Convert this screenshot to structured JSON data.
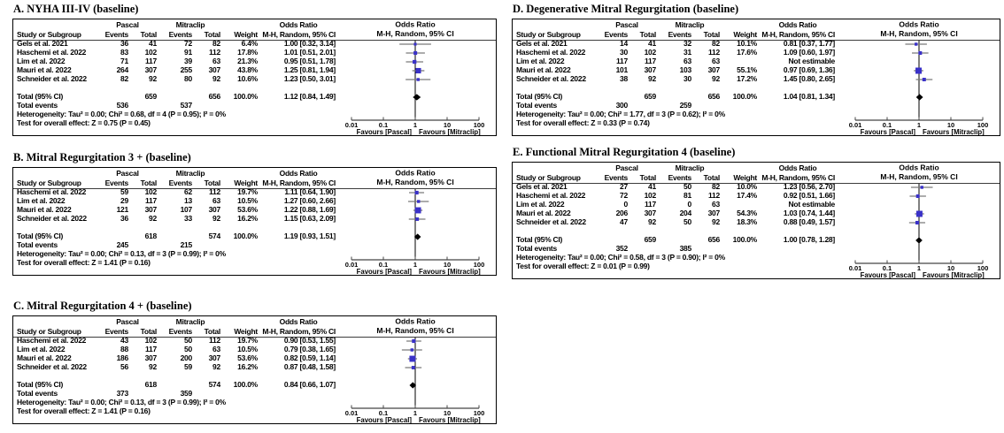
{
  "colors": {
    "marker": "#3a31c8",
    "ci_line": "#7a7a7a",
    "diamond": "#000000",
    "axis": "#444444",
    "text": "#000000",
    "border": "#000000"
  },
  "columns": {
    "study": "Study or Subgroup",
    "group1": "Pascal",
    "group2": "Mitraclip",
    "events": "Events",
    "total": "Total",
    "weight": "Weight",
    "or_title": "Odds Ratio",
    "or_sub": "M-H, Random, 95% CI"
  },
  "axis": {
    "ticks": [
      "0.01",
      "0.1",
      "1",
      "10",
      "100"
    ],
    "tick_values": [
      0.01,
      0.1,
      1,
      10,
      100
    ],
    "favours_left": "Favours [Pascal]",
    "favours_right": "Favours [Mitraclip]"
  },
  "chart_data": {
    "type": "forest",
    "scale": "log10",
    "xlim": [
      0.01,
      100
    ],
    "panels": [
      {
        "label": "A",
        "title": "A. NYHA III-IV (baseline)",
        "rows": [
          {
            "study": "Gels et al. 2021",
            "e1": "36",
            "t1": "41",
            "e2": "72",
            "t2": "82",
            "weight": "6.4%",
            "w": 6.4,
            "or_ci": "1.00 [0.32, 3.14]",
            "or": 1.0,
            "lo": 0.32,
            "hi": 3.14
          },
          {
            "study": "Haschemi et al. 2022",
            "e1": "83",
            "t1": "102",
            "e2": "91",
            "t2": "112",
            "weight": "17.8%",
            "w": 17.8,
            "or_ci": "1.01 [0.51, 2.01]",
            "or": 1.01,
            "lo": 0.51,
            "hi": 2.01
          },
          {
            "study": "Lim et al. 2022",
            "e1": "71",
            "t1": "117",
            "e2": "39",
            "t2": "63",
            "weight": "21.3%",
            "w": 21.3,
            "or_ci": "0.95 [0.51, 1.78]",
            "or": 0.95,
            "lo": 0.51,
            "hi": 1.78
          },
          {
            "study": "Mauri et al. 2022",
            "e1": "264",
            "t1": "307",
            "e2": "255",
            "t2": "307",
            "weight": "43.8%",
            "w": 43.8,
            "or_ci": "1.25 [0.81, 1.94]",
            "or": 1.25,
            "lo": 0.81,
            "hi": 1.94
          },
          {
            "study": "Schneider et al. 2022",
            "e1": "82",
            "t1": "92",
            "e2": "80",
            "t2": "92",
            "weight": "10.6%",
            "w": 10.6,
            "or_ci": "1.23 [0.50, 3.01]",
            "or": 1.23,
            "lo": 0.5,
            "hi": 3.01
          }
        ],
        "total": {
          "label": "Total (95% CI)",
          "t1": "659",
          "t2": "656",
          "weight": "100.0%",
          "or_ci": "1.12 [0.84, 1.49]",
          "or": 1.12,
          "lo": 0.84,
          "hi": 1.49
        },
        "total_events": {
          "label": "Total events",
          "e1": "536",
          "e2": "537"
        },
        "heterogeneity": "Heterogeneity: Tau² = 0.00; Chi² = 0.68, df = 4 (P = 0.95); I² = 0%",
        "overall_effect": "Test for overall effect: Z = 0.75 (P = 0.45)"
      },
      {
        "label": "B",
        "title": "B. Mitral Regurgitation 3 + (baseline)",
        "rows": [
          {
            "study": "Haschemi et al. 2022",
            "e1": "59",
            "t1": "102",
            "e2": "62",
            "t2": "112",
            "weight": "19.7%",
            "w": 19.7,
            "or_ci": "1.11 [0.64, 1.90]",
            "or": 1.11,
            "lo": 0.64,
            "hi": 1.9
          },
          {
            "study": "Lim et al. 2022",
            "e1": "29",
            "t1": "117",
            "e2": "13",
            "t2": "63",
            "weight": "10.5%",
            "w": 10.5,
            "or_ci": "1.27 [0.60, 2.66]",
            "or": 1.27,
            "lo": 0.6,
            "hi": 2.66
          },
          {
            "study": "Mauri et al. 2022",
            "e1": "121",
            "t1": "307",
            "e2": "107",
            "t2": "307",
            "weight": "53.6%",
            "w": 53.6,
            "or_ci": "1.22 [0.88, 1.69]",
            "or": 1.22,
            "lo": 0.88,
            "hi": 1.69
          },
          {
            "study": "Schneider et al. 2022",
            "e1": "36",
            "t1": "92",
            "e2": "33",
            "t2": "92",
            "weight": "16.2%",
            "w": 16.2,
            "or_ci": "1.15 [0.63, 2.09]",
            "or": 1.15,
            "lo": 0.63,
            "hi": 2.09
          }
        ],
        "total": {
          "label": "Total (95% CI)",
          "t1": "618",
          "t2": "574",
          "weight": "100.0%",
          "or_ci": "1.19 [0.93, 1.51]",
          "or": 1.19,
          "lo": 0.93,
          "hi": 1.51
        },
        "total_events": {
          "label": "Total events",
          "e1": "245",
          "e2": "215"
        },
        "heterogeneity": "Heterogeneity: Tau² = 0.00; Chi² = 0.13, df = 3 (P = 0.99); I² = 0%",
        "overall_effect": "Test for overall effect: Z = 1.41 (P = 0.16)"
      },
      {
        "label": "C",
        "title": "C. Mitral Regurgitation 4 + (baseline)",
        "rows": [
          {
            "study": "Haschemi et al. 2022",
            "e1": "43",
            "t1": "102",
            "e2": "50",
            "t2": "112",
            "weight": "19.7%",
            "w": 19.7,
            "or_ci": "0.90 [0.53, 1.55]",
            "or": 0.9,
            "lo": 0.53,
            "hi": 1.55
          },
          {
            "study": "Lim et al. 2022",
            "e1": "88",
            "t1": "117",
            "e2": "50",
            "t2": "63",
            "weight": "10.5%",
            "w": 10.5,
            "or_ci": "0.79 [0.38, 1.65]",
            "or": 0.79,
            "lo": 0.38,
            "hi": 1.65
          },
          {
            "study": "Mauri et al. 2022",
            "e1": "186",
            "t1": "307",
            "e2": "200",
            "t2": "307",
            "weight": "53.6%",
            "w": 53.6,
            "or_ci": "0.82 [0.59, 1.14]",
            "or": 0.82,
            "lo": 0.59,
            "hi": 1.14
          },
          {
            "study": "Schneider et al. 2022",
            "e1": "56",
            "t1": "92",
            "e2": "59",
            "t2": "92",
            "weight": "16.2%",
            "w": 16.2,
            "or_ci": "0.87 [0.48, 1.58]",
            "or": 0.87,
            "lo": 0.48,
            "hi": 1.58
          }
        ],
        "total": {
          "label": "Total (95% CI)",
          "t1": "618",
          "t2": "574",
          "weight": "100.0%",
          "or_ci": "0.84 [0.66, 1.07]",
          "or": 0.84,
          "lo": 0.66,
          "hi": 1.07
        },
        "total_events": {
          "label": "Total events",
          "e1": "373",
          "e2": "359"
        },
        "heterogeneity": "Heterogeneity: Tau² = 0.00; Chi² = 0.13, df = 3 (P = 0.99); I² = 0%",
        "overall_effect": "Test for overall effect: Z = 1.41 (P = 0.16)"
      },
      {
        "label": "D",
        "title": "D. Degenerative Mitral Regurgitation (baseline)",
        "rows": [
          {
            "study": "Gels et al. 2021",
            "e1": "14",
            "t1": "41",
            "e2": "32",
            "t2": "82",
            "weight": "10.1%",
            "w": 10.1,
            "or_ci": "0.81 [0.37, 1.77]",
            "or": 0.81,
            "lo": 0.37,
            "hi": 1.77
          },
          {
            "study": "Haschemi et al. 2022",
            "e1": "30",
            "t1": "102",
            "e2": "31",
            "t2": "112",
            "weight": "17.6%",
            "w": 17.6,
            "or_ci": "1.09 [0.60, 1.97]",
            "or": 1.09,
            "lo": 0.6,
            "hi": 1.97
          },
          {
            "study": "Lim et al. 2022",
            "e1": "117",
            "t1": "117",
            "e2": "63",
            "t2": "63",
            "weight": "",
            "w": null,
            "or_ci": "Not estimable",
            "or": null,
            "lo": null,
            "hi": null
          },
          {
            "study": "Mauri et al. 2022",
            "e1": "101",
            "t1": "307",
            "e2": "103",
            "t2": "307",
            "weight": "55.1%",
            "w": 55.1,
            "or_ci": "0.97 [0.69, 1.36]",
            "or": 0.97,
            "lo": 0.69,
            "hi": 1.36
          },
          {
            "study": "Schneider et al. 2022",
            "e1": "38",
            "t1": "92",
            "e2": "30",
            "t2": "92",
            "weight": "17.2%",
            "w": 17.2,
            "or_ci": "1.45 [0.80, 2.65]",
            "or": 1.45,
            "lo": 0.8,
            "hi": 2.65
          }
        ],
        "total": {
          "label": "Total (95% CI)",
          "t1": "659",
          "t2": "656",
          "weight": "100.0%",
          "or_ci": "1.04 [0.81, 1.34]",
          "or": 1.04,
          "lo": 0.81,
          "hi": 1.34
        },
        "total_events": {
          "label": "Total events",
          "e1": "300",
          "e2": "259"
        },
        "heterogeneity": "Heterogeneity: Tau² = 0.00; Chi² = 1.77, df = 3 (P = 0.62); I² = 0%",
        "overall_effect": "Test for overall effect: Z = 0.33 (P = 0.74)"
      },
      {
        "label": "E",
        "title": "E. Functional Mitral Regurgitation 4 (baseline)",
        "rows": [
          {
            "study": "Gels et al. 2021",
            "e1": "27",
            "t1": "41",
            "e2": "50",
            "t2": "82",
            "weight": "10.0%",
            "w": 10.0,
            "or_ci": "1.23 [0.56, 2.70]",
            "or": 1.23,
            "lo": 0.56,
            "hi": 2.7
          },
          {
            "study": "Haschemi et al. 2022",
            "e1": "72",
            "t1": "102",
            "e2": "81",
            "t2": "112",
            "weight": "17.4%",
            "w": 17.4,
            "or_ci": "0.92 [0.51, 1.66]",
            "or": 0.92,
            "lo": 0.51,
            "hi": 1.66
          },
          {
            "study": "Lim et al. 2022",
            "e1": "0",
            "t1": "117",
            "e2": "0",
            "t2": "63",
            "weight": "",
            "w": null,
            "or_ci": "Not estimable",
            "or": null,
            "lo": null,
            "hi": null
          },
          {
            "study": "Mauri et al. 2022",
            "e1": "206",
            "t1": "307",
            "e2": "204",
            "t2": "307",
            "weight": "54.3%",
            "w": 54.3,
            "or_ci": "1.03 [0.74, 1.44]",
            "or": 1.03,
            "lo": 0.74,
            "hi": 1.44
          },
          {
            "study": "Schneider et al. 2022",
            "e1": "47",
            "t1": "92",
            "e2": "50",
            "t2": "92",
            "weight": "18.3%",
            "w": 18.3,
            "or_ci": "0.88 [0.49, 1.57]",
            "or": 0.88,
            "lo": 0.49,
            "hi": 1.57
          }
        ],
        "total": {
          "label": "Total (95% CI)",
          "t1": "659",
          "t2": "656",
          "weight": "100.0%",
          "or_ci": "1.00 [0.78, 1.28]",
          "or": 1.0,
          "lo": 0.78,
          "hi": 1.28
        },
        "total_events": {
          "label": "Total events",
          "e1": "352",
          "e2": "385"
        },
        "heterogeneity": "Heterogeneity: Tau² = 0.00; Chi² = 0.58, df = 3 (P = 0.90); I² = 0%",
        "overall_effect": "Test for overall effect: Z = 0.01 (P = 0.99)"
      }
    ]
  }
}
